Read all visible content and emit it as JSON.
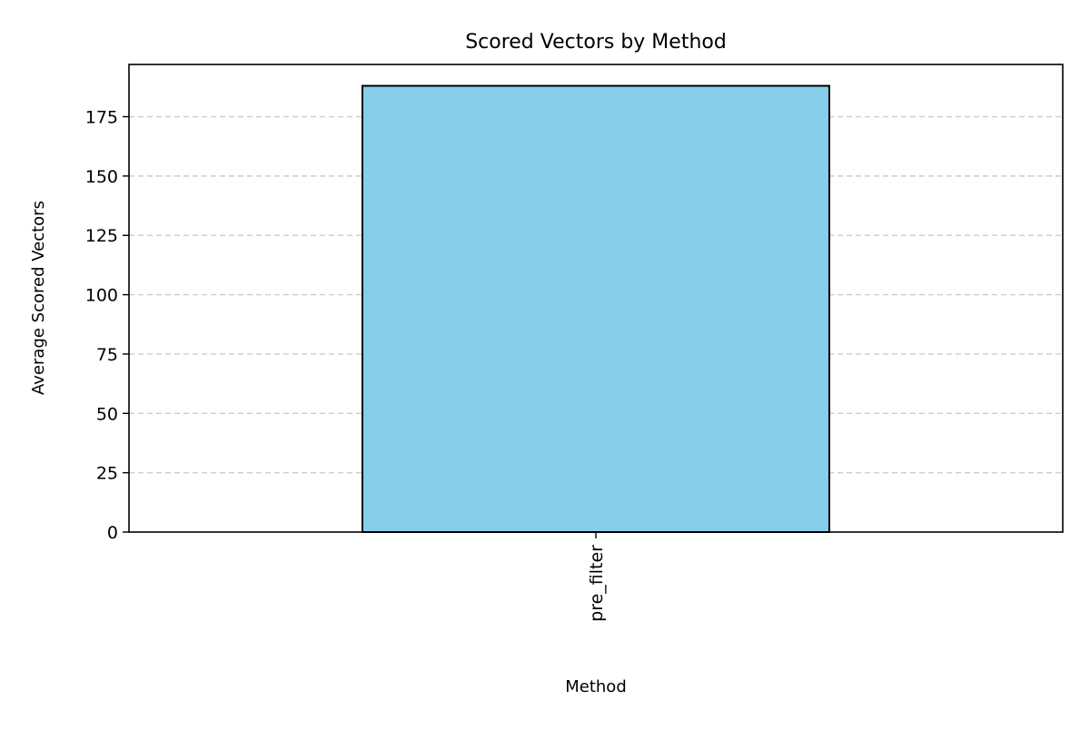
{
  "chart_data": {
    "type": "bar",
    "title": "Scored Vectors by Method",
    "xlabel": "Method",
    "ylabel": "Average Scored Vectors",
    "categories": [
      "pre_filter"
    ],
    "values": [
      188
    ],
    "ylim": [
      0,
      197
    ],
    "yticks": [
      0,
      25,
      50,
      75,
      100,
      125,
      150,
      175
    ],
    "grid": "y-dashed",
    "legend": "none",
    "colors": {
      "bar_fill": "#87CEEB",
      "bar_edge": "#000000",
      "grid": "#cccccc",
      "axes": "#000000"
    }
  }
}
